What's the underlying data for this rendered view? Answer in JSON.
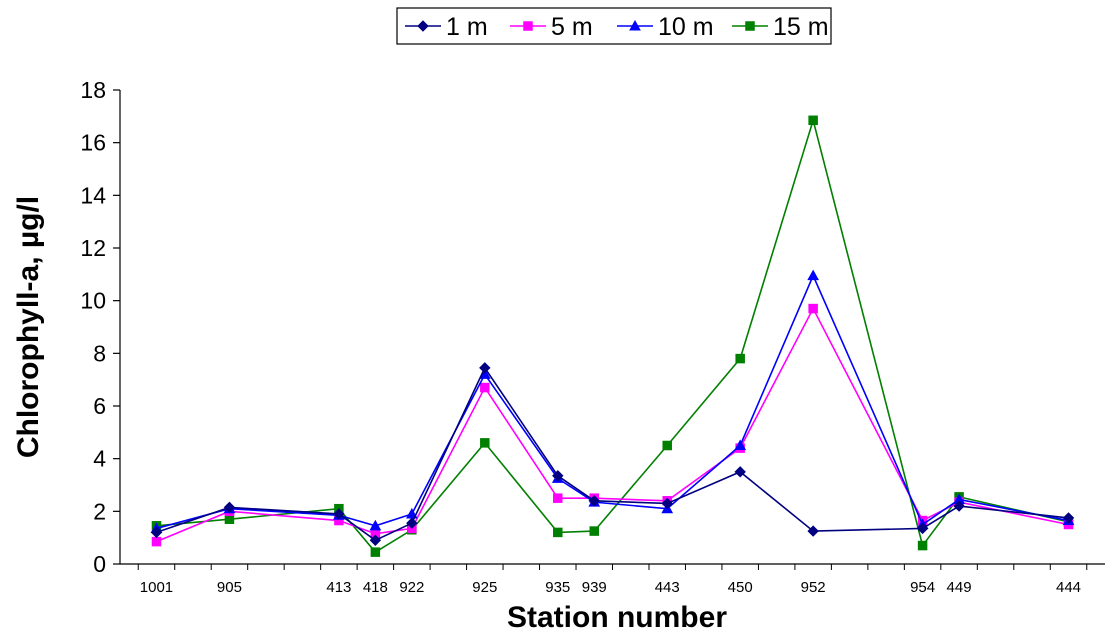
{
  "chart_data": {
    "type": "line",
    "title": "",
    "xlabel": "Station number",
    "ylabel": "Chlorophyll-a, µg/l",
    "x": [
      0,
      2,
      5,
      6,
      7,
      9,
      11,
      12,
      14,
      16,
      18,
      21,
      22,
      25
    ],
    "categories": [
      "1001",
      "905",
      "413",
      "418",
      "922",
      "925",
      "935",
      "939",
      "443",
      "450",
      "952",
      "954",
      "449",
      "444"
    ],
    "xlim": [
      -1,
      26
    ],
    "ylim": [
      0,
      18
    ],
    "yticks": [
      0,
      2,
      4,
      6,
      8,
      10,
      12,
      14,
      16,
      18
    ],
    "grid": false,
    "legend_position": "top-center",
    "series": [
      {
        "name": "1 m",
        "color": "#000080",
        "marker": "diamond",
        "values": [
          1.2,
          2.15,
          1.9,
          0.9,
          1.55,
          7.45,
          3.35,
          2.4,
          2.3,
          3.5,
          1.25,
          1.35,
          2.2,
          1.75
        ]
      },
      {
        "name": "5 m",
        "color": "#FF00FF",
        "marker": "square",
        "values": [
          0.85,
          2.0,
          1.65,
          1.15,
          1.35,
          6.7,
          2.5,
          2.5,
          2.4,
          4.4,
          9.7,
          1.65,
          2.35,
          1.5
        ]
      },
      {
        "name": "10 m",
        "color": "#0000FF",
        "marker": "triangle",
        "values": [
          1.35,
          2.1,
          1.85,
          1.45,
          1.9,
          7.2,
          3.25,
          2.35,
          2.1,
          4.5,
          10.95,
          1.5,
          2.45,
          1.65
        ]
      },
      {
        "name": "15 m",
        "color": "#008000",
        "marker": "square",
        "values": [
          1.45,
          1.7,
          2.1,
          0.45,
          1.3,
          4.6,
          1.2,
          1.25,
          4.5,
          7.8,
          16.85,
          0.7,
          2.55,
          1.6
        ]
      }
    ]
  }
}
